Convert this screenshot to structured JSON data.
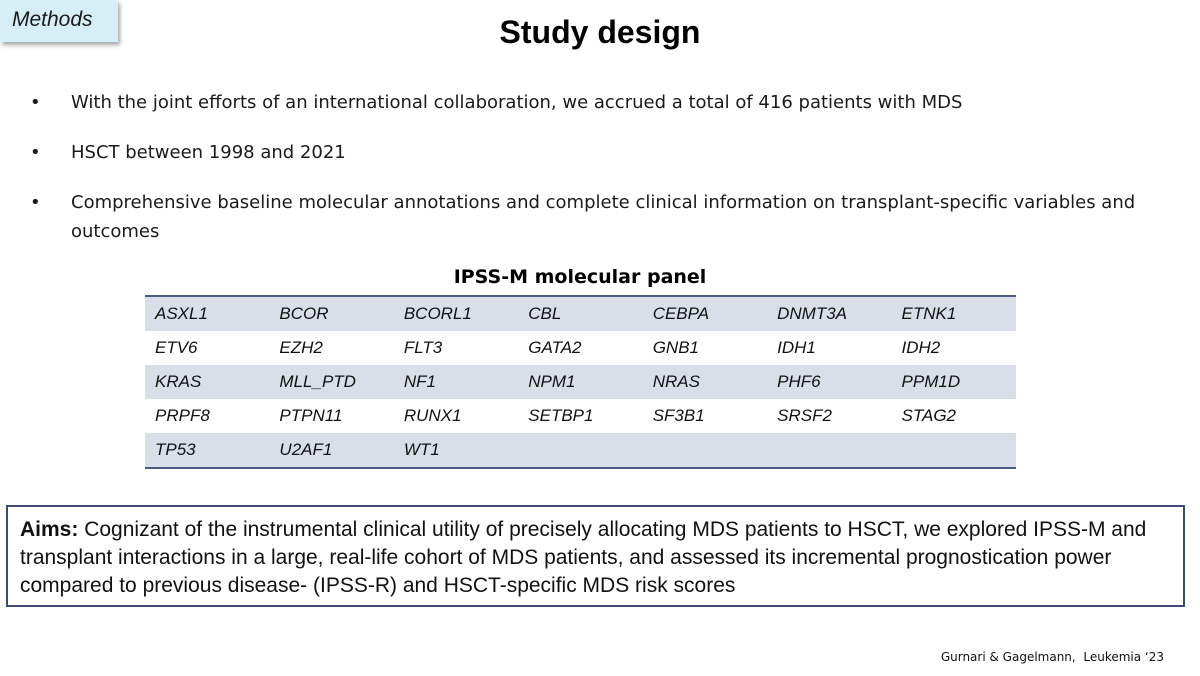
{
  "section_tag": "Methods",
  "title": "Study design",
  "bullets": [
    "With the joint efforts of an international collaboration, we accrued a total of 416 patients with MDS",
    "HSCT between 1998 and 2021",
    "Comprehensive baseline molecular annotations and complete clinical information on transplant-specific variables and outcomes"
  ],
  "bullet_symbol": "•",
  "panel": {
    "title": "IPSS-M molecular panel",
    "rows": [
      [
        "ASXL1",
        "BCOR",
        "BCORL1",
        "CBL",
        "CEBPA",
        "DNMT3A",
        "ETNK1"
      ],
      [
        "ETV6",
        "EZH2",
        "FLT3",
        "GATA2",
        "GNB1",
        "IDH1",
        "IDH2"
      ],
      [
        "KRAS",
        "MLL_PTD",
        "NF1",
        "NPM1",
        "NRAS",
        "PHF6",
        "PPM1D"
      ],
      [
        "PRPF8",
        "PTPN11",
        "RUNX1",
        "SETBP1",
        "SF3B1",
        "SRSF2",
        "STAG2"
      ],
      [
        "TP53",
        "U2AF1",
        "WT1",
        "",
        "",
        "",
        ""
      ]
    ]
  },
  "aims": {
    "label": "Aims:",
    "text": " Cognizant of the instrumental clinical utility of precisely allocating MDS patients to HSCT, we explored IPSS-M and transplant interactions in a large, real-life cohort of MDS patients, and assessed its incremental prognostication power compared to previous disease- (IPSS-R) and HSCT-specific MDS risk scores"
  },
  "citation": "Gurnari & Gagelmann,  Leukemia ‘23"
}
